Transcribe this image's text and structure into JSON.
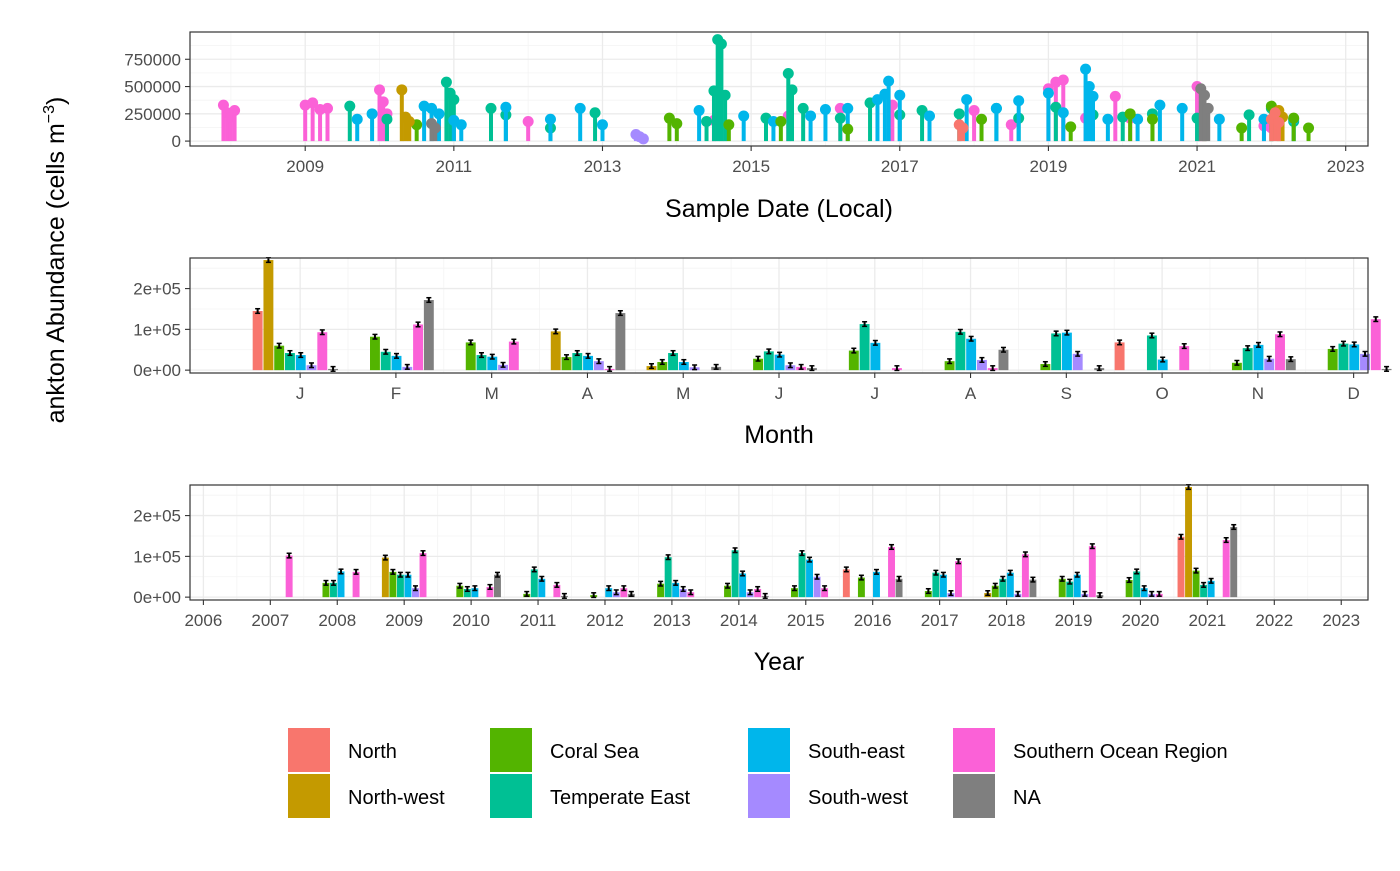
{
  "y_title": "ankton Abundance (cells m",
  "y_title_sup": "−3",
  "y_title_close": ")",
  "colors": {
    "North": "#F8766D",
    "North-west": "#C49A00",
    "Coral Sea": "#53B400",
    "Temperate East": "#00C094",
    "South-east": "#00B6EB",
    "South-west": "#A58AFF",
    "Southern Ocean Region": "#FB61D7",
    "NA": "#7F7F7F"
  },
  "legend": {
    "items": [
      "North",
      "North-west",
      "Coral Sea",
      "Temperate East",
      "South-east",
      "South-west",
      "Southern Ocean Region",
      "NA"
    ]
  },
  "chart_data": [
    {
      "type": "scatter",
      "xlabel": "Sample Date (Local)",
      "ylabel": "ankton Abundance (cells m−3)",
      "x_ticks": [
        "2009",
        "2011",
        "2013",
        "2015",
        "2017",
        "2019",
        "2021",
        "2023"
      ],
      "y_ticks": [
        "0",
        "250000",
        "500000",
        "750000"
      ],
      "xlim": [
        2007.45,
        2023.3
      ],
      "ylim": [
        -45000,
        1000000
      ],
      "series": [
        {
          "name": "Southern Ocean Region",
          "points": [
            [
              2007.9,
              330000
            ],
            [
              2007.95,
              260000
            ],
            [
              2008.0,
              220000
            ],
            [
              2008.05,
              280000
            ],
            [
              2009.0,
              330000
            ],
            [
              2009.1,
              350000
            ],
            [
              2009.2,
              290000
            ],
            [
              2009.3,
              300000
            ],
            [
              2010.0,
              470000
            ],
            [
              2010.05,
              360000
            ],
            [
              2010.1,
              250000
            ],
            [
              2012.0,
              180000
            ],
            [
              2014.5,
              190000
            ],
            [
              2015.5,
              230000
            ],
            [
              2016.2,
              300000
            ],
            [
              2016.9,
              330000
            ],
            [
              2018.0,
              280000
            ],
            [
              2018.5,
              150000
            ],
            [
              2019.0,
              480000
            ],
            [
              2019.1,
              540000
            ],
            [
              2019.2,
              560000
            ],
            [
              2019.5,
              210000
            ],
            [
              2019.9,
              410000
            ],
            [
              2020.1,
              210000
            ],
            [
              2021.0,
              500000
            ],
            [
              2021.05,
              440000
            ],
            [
              2021.1,
              300000
            ],
            [
              2021.9,
              140000
            ],
            [
              2022.0,
              120000
            ]
          ]
        },
        {
          "name": "Temperate East",
          "points": [
            [
              2009.6,
              320000
            ],
            [
              2010.1,
              200000
            ],
            [
              2010.9,
              540000
            ],
            [
              2010.95,
              440000
            ],
            [
              2011.0,
              380000
            ],
            [
              2011.5,
              300000
            ],
            [
              2011.7,
              240000
            ],
            [
              2012.3,
              120000
            ],
            [
              2012.9,
              260000
            ],
            [
              2014.4,
              180000
            ],
            [
              2014.5,
              460000
            ],
            [
              2014.55,
              930000
            ],
            [
              2014.6,
              890000
            ],
            [
              2014.65,
              420000
            ],
            [
              2015.2,
              210000
            ],
            [
              2015.5,
              620000
            ],
            [
              2015.55,
              470000
            ],
            [
              2015.7,
              300000
            ],
            [
              2016.2,
              210000
            ],
            [
              2016.6,
              350000
            ],
            [
              2017.0,
              240000
            ],
            [
              2017.3,
              280000
            ],
            [
              2017.8,
              250000
            ],
            [
              2018.3,
              300000
            ],
            [
              2018.6,
              210000
            ],
            [
              2019.1,
              310000
            ],
            [
              2019.6,
              240000
            ],
            [
              2020.0,
              220000
            ],
            [
              2020.4,
              250000
            ],
            [
              2021.0,
              210000
            ],
            [
              2021.7,
              240000
            ],
            [
              2022.0,
              300000
            ],
            [
              2022.3,
              180000
            ]
          ]
        },
        {
          "name": "South-east",
          "points": [
            [
              2009.7,
              200000
            ],
            [
              2009.9,
              250000
            ],
            [
              2010.6,
              320000
            ],
            [
              2010.7,
              300000
            ],
            [
              2010.8,
              250000
            ],
            [
              2011.0,
              190000
            ],
            [
              2011.1,
              150000
            ],
            [
              2011.7,
              310000
            ],
            [
              2012.3,
              200000
            ],
            [
              2012.7,
              300000
            ],
            [
              2013.0,
              150000
            ],
            [
              2014.3,
              280000
            ],
            [
              2014.9,
              230000
            ],
            [
              2015.3,
              180000
            ],
            [
              2015.8,
              230000
            ],
            [
              2016.0,
              290000
            ],
            [
              2016.3,
              300000
            ],
            [
              2016.7,
              380000
            ],
            [
              2016.8,
              430000
            ],
            [
              2016.85,
              550000
            ],
            [
              2017.0,
              420000
            ],
            [
              2017.4,
              230000
            ],
            [
              2017.9,
              380000
            ],
            [
              2018.3,
              300000
            ],
            [
              2018.6,
              370000
            ],
            [
              2019.0,
              440000
            ],
            [
              2019.2,
              260000
            ],
            [
              2019.5,
              660000
            ],
            [
              2019.55,
              500000
            ],
            [
              2019.6,
              410000
            ],
            [
              2019.8,
              200000
            ],
            [
              2020.2,
              200000
            ],
            [
              2020.5,
              330000
            ],
            [
              2020.8,
              300000
            ],
            [
              2021.3,
              200000
            ],
            [
              2021.9,
              200000
            ],
            [
              2022.3,
              200000
            ]
          ]
        },
        {
          "name": "Coral Sea",
          "points": [
            [
              2010.5,
              150000
            ],
            [
              2013.9,
              210000
            ],
            [
              2014.0,
              160000
            ],
            [
              2014.7,
              150000
            ],
            [
              2015.4,
              180000
            ],
            [
              2016.3,
              110000
            ],
            [
              2018.1,
              200000
            ],
            [
              2019.3,
              130000
            ],
            [
              2020.1,
              250000
            ],
            [
              2020.4,
              200000
            ],
            [
              2021.1,
              180000
            ],
            [
              2021.6,
              120000
            ],
            [
              2022.0,
              320000
            ],
            [
              2022.3,
              210000
            ],
            [
              2022.5,
              120000
            ]
          ]
        },
        {
          "name": "North-west",
          "points": [
            [
              2010.3,
              470000
            ],
            [
              2010.35,
              220000
            ],
            [
              2010.4,
              180000
            ],
            [
              2022.1,
              280000
            ],
            [
              2022.15,
              220000
            ]
          ]
        },
        {
          "name": "North",
          "points": [
            [
              2017.8,
              150000
            ],
            [
              2017.85,
              120000
            ],
            [
              2022.0,
              200000
            ],
            [
              2022.05,
              260000
            ],
            [
              2022.1,
              170000
            ]
          ]
        },
        {
          "name": "South-west",
          "points": [
            [
              2013.45,
              60000
            ],
            [
              2013.5,
              40000
            ],
            [
              2013.55,
              20000
            ]
          ]
        },
        {
          "name": "NA",
          "points": [
            [
              2010.7,
              160000
            ],
            [
              2010.75,
              120000
            ],
            [
              2021.05,
              480000
            ],
            [
              2021.1,
              420000
            ],
            [
              2021.15,
              300000
            ]
          ]
        }
      ]
    },
    {
      "type": "bar",
      "xlabel": "Month",
      "ylabel": "ankton Abundance (cells m−3)",
      "categories": [
        "J",
        "F",
        "M",
        "A",
        "M",
        "J",
        "J",
        "A",
        "S",
        "O",
        "N",
        "D"
      ],
      "y_ticks": [
        "0e+00",
        "1e+05",
        "2e+05"
      ],
      "ylim": [
        -7000,
        275000
      ],
      "series": [
        {
          "name": "North",
          "values": [
            145000,
            null,
            null,
            null,
            null,
            null,
            null,
            null,
            null,
            68000,
            null,
            null
          ]
        },
        {
          "name": "North-west",
          "values": [
            270000,
            null,
            null,
            95000,
            10000,
            null,
            null,
            null,
            null,
            null,
            null,
            null
          ]
        },
        {
          "name": "Coral Sea",
          "values": [
            60000,
            82000,
            68000,
            32000,
            20000,
            28000,
            48000,
            22000,
            15000,
            null,
            18000,
            52000
          ]
        },
        {
          "name": "Temperate East",
          "values": [
            42000,
            45000,
            37000,
            42000,
            42000,
            46000,
            113000,
            94000,
            90000,
            85000,
            54000,
            65000
          ]
        },
        {
          "name": "South-east",
          "values": [
            37000,
            35000,
            33000,
            35000,
            20000,
            38000,
            67000,
            77000,
            92000,
            26000,
            62000,
            63000
          ]
        },
        {
          "name": "South-west",
          "values": [
            12000,
            8000,
            13000,
            22000,
            7000,
            12000,
            null,
            25000,
            40000,
            null,
            28000,
            40000
          ]
        },
        {
          "name": "Southern Ocean Region",
          "values": [
            93000,
            112000,
            70000,
            3000,
            null,
            8000,
            5000,
            5000,
            null,
            59000,
            88000,
            125000
          ]
        },
        {
          "name": "NA",
          "values": [
            3000,
            172000,
            null,
            140000,
            8000,
            5000,
            null,
            50000,
            5000,
            null,
            27000,
            3000
          ]
        }
      ]
    },
    {
      "type": "bar",
      "xlabel": "Year",
      "ylabel": "ankton Abundance (cells m−3)",
      "x_ticks": [
        "2006",
        "2007",
        "2008",
        "2009",
        "2010",
        "2011",
        "2012",
        "2013",
        "2014",
        "2015",
        "2016",
        "2017",
        "2018",
        "2019",
        "2020",
        "2021",
        "2022",
        "2023"
      ],
      "y_ticks": [
        "0e+00",
        "1e+05",
        "2e+05"
      ],
      "ylim": [
        -7000,
        275000
      ],
      "series": [
        {
          "name": "North",
          "values": {
            "2016": 68000,
            "2021": 148000
          }
        },
        {
          "name": "North-west",
          "values": {
            "2009": 97000,
            "2018": 10000,
            "2021": 270000
          }
        },
        {
          "name": "Coral Sea",
          "values": {
            "2008": 35000,
            "2009": 62000,
            "2010": 28000,
            "2011": 8000,
            "2012": 5000,
            "2013": 33000,
            "2014": 28000,
            "2015": 22000,
            "2016": 48000,
            "2017": 15000,
            "2018": 28000,
            "2019": 45000,
            "2020": 42000,
            "2021": 65000
          }
        },
        {
          "name": "Temperate East",
          "values": {
            "2008": 35000,
            "2009": 55000,
            "2010": 20000,
            "2011": 68000,
            "2013": 98000,
            "2014": 115000,
            "2015": 108000,
            "2017": 60000,
            "2018": 45000,
            "2019": 38000,
            "2020": 63000,
            "2021": 30000
          }
        },
        {
          "name": "South-east",
          "values": {
            "2008": 63000,
            "2009": 55000,
            "2010": 22000,
            "2011": 45000,
            "2012": 22000,
            "2013": 35000,
            "2014": 58000,
            "2015": 92000,
            "2016": 62000,
            "2017": 55000,
            "2018": 60000,
            "2019": 55000,
            "2020": 22000,
            "2021": 40000
          }
        },
        {
          "name": "South-west",
          "values": {
            "2009": 22000,
            "2012": 12000,
            "2013": 20000,
            "2014": 12000,
            "2015": 50000,
            "2017": 10000,
            "2018": 8000,
            "2019": 8000,
            "2020": 8000
          }
        },
        {
          "name": "Southern Ocean Region",
          "values": {
            "2007": 102000,
            "2008": 62000,
            "2009": 108000,
            "2010": 25000,
            "2011": 30000,
            "2012": 22000,
            "2013": 12000,
            "2014": 20000,
            "2015": 22000,
            "2016": 123000,
            "2017": 88000,
            "2018": 105000,
            "2019": 125000,
            "2020": 8000,
            "2021": 140000
          }
        },
        {
          "name": "NA",
          "values": {
            "2010": 55000,
            "2011": 3000,
            "2012": 8000,
            "2014": 3000,
            "2016": 45000,
            "2018": 43000,
            "2019": 5000,
            "2021": 172000
          }
        }
      ]
    }
  ]
}
